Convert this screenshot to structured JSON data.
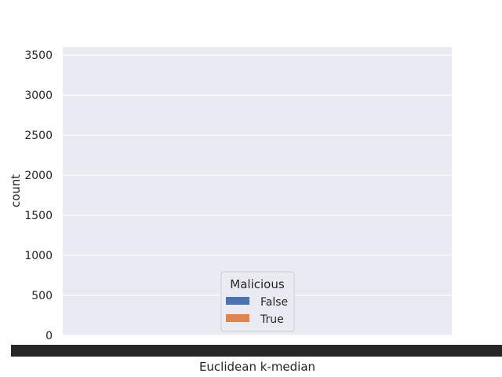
{
  "chart_data": {
    "type": "bar",
    "xlabel": "Euclidean k-median",
    "ylabel": "count",
    "ylim": [
      0,
      3600
    ],
    "yticks": [
      0,
      500,
      1000,
      1500,
      2000,
      2500,
      3000,
      3500
    ],
    "ytick_labels": [
      "0",
      "500",
      "1000",
      "1500",
      "2000",
      "2500",
      "3000",
      "3500"
    ],
    "xtick_label_edges": [
      "1.2",
      "8"
    ],
    "grid": true,
    "legend": {
      "title": "Malicious",
      "placement": "lower-center",
      "entries": [
        {
          "label": "False",
          "color": "#4c72b0"
        },
        {
          "label": "True",
          "color": "#dd8452"
        }
      ]
    },
    "categories": [],
    "series": [
      {
        "name": "False",
        "values": []
      },
      {
        "name": "True",
        "values": []
      }
    ],
    "colors": {
      "background": "#eaeaf2",
      "grid": "#ffffff",
      "false": "#4c72b0",
      "true": "#dd8452"
    }
  }
}
